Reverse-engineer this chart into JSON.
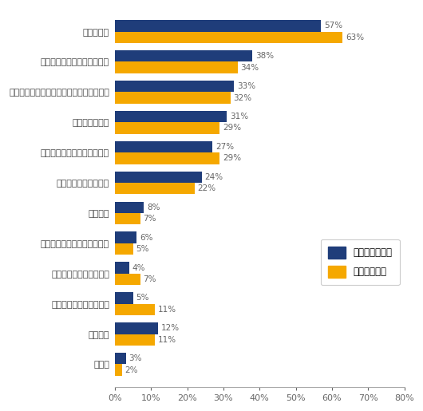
{
  "categories": [
    "その他",
    "特にない",
    "家族の理解が得られるか",
    "今の職場を退職できるか",
    "レジュメ・職務経歴書の作成",
    "面接対応",
    "次の職場に馴染めるか",
    "給与を上げることができるか",
    "過去の転職回数",
    "自分の経験・スキルに市場の需要があるか",
    "希望する仕事の求人があるか",
    "現在の年齢"
  ],
  "foreign_values": [
    3,
    12,
    5,
    4,
    6,
    8,
    24,
    27,
    31,
    33,
    38,
    57
  ],
  "japanese_values": [
    2,
    11,
    11,
    7,
    5,
    7,
    22,
    29,
    29,
    32,
    34,
    63
  ],
  "foreign_color": "#1f3d7a",
  "japanese_color": "#f5a800",
  "foreign_label": "外資系企業社員",
  "japanese_label": "日系企業社員",
  "xlim": [
    0,
    80
  ],
  "xtick_values": [
    0,
    10,
    20,
    30,
    40,
    50,
    60,
    70,
    80
  ],
  "bar_height": 0.38,
  "background_color": "#ffffff",
  "label_fontsize": 7.5,
  "tick_fontsize": 8.0,
  "legend_fontsize": 8.5
}
